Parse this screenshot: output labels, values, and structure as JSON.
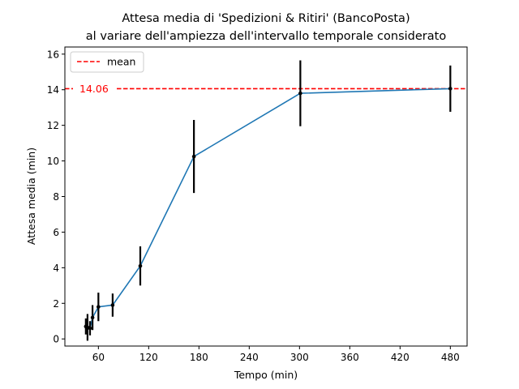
{
  "chart_data": {
    "type": "line",
    "title": [
      "Attesa media di 'Spedizioni & Ritiri' (BancoPosta)",
      "al variare dell'ampiezza dell'intervallo temporale considerato"
    ],
    "xlabel": "Tempo (min)",
    "ylabel": "Attesa media (min)",
    "xlim": [
      20,
      500
    ],
    "ylim": [
      -0.4,
      16.4
    ],
    "xticks": [
      60,
      120,
      180,
      240,
      300,
      360,
      420,
      480
    ],
    "yticks": [
      0,
      2,
      4,
      6,
      8,
      10,
      12,
      14,
      16
    ],
    "grid": false,
    "legend_position": "top-left",
    "series": [
      {
        "x": [
          45,
          47,
          50,
          53,
          60,
          77,
          110,
          174,
          301,
          480
        ],
        "y": [
          0.7,
          0.65,
          0.6,
          1.2,
          1.8,
          1.9,
          4.1,
          10.25,
          13.8,
          14.06
        ],
        "err": [
          0.45,
          0.75,
          0.4,
          0.7,
          0.8,
          0.65,
          1.1,
          2.05,
          1.85,
          1.3
        ],
        "color": "#1f77b4",
        "errorbar_color": "#000000"
      }
    ],
    "mean": {
      "value": 14.06,
      "label": "14.06",
      "legend": "mean",
      "color": "#ff0000"
    }
  }
}
